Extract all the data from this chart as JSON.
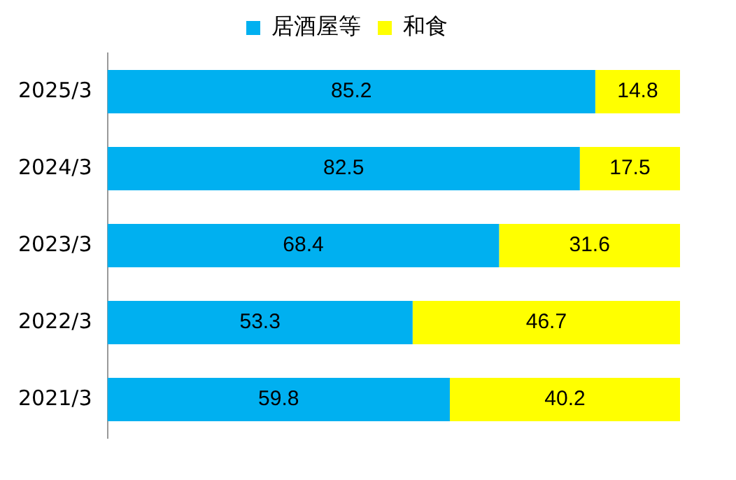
{
  "chart_data": {
    "type": "bar",
    "orientation": "horizontal",
    "stacked": true,
    "legend": "top",
    "data_labels": true,
    "categories": [
      "2025/3",
      "2024/3",
      "2023/3",
      "2022/3",
      "2021/3"
    ],
    "series": [
      {
        "name": "居酒屋等",
        "color": "#00b0f0",
        "values": [
          85.2,
          82.5,
          68.4,
          53.3,
          59.8
        ]
      },
      {
        "name": "和食",
        "color": "#ffff00",
        "values": [
          14.8,
          17.5,
          31.6,
          46.7,
          40.2
        ]
      }
    ]
  }
}
